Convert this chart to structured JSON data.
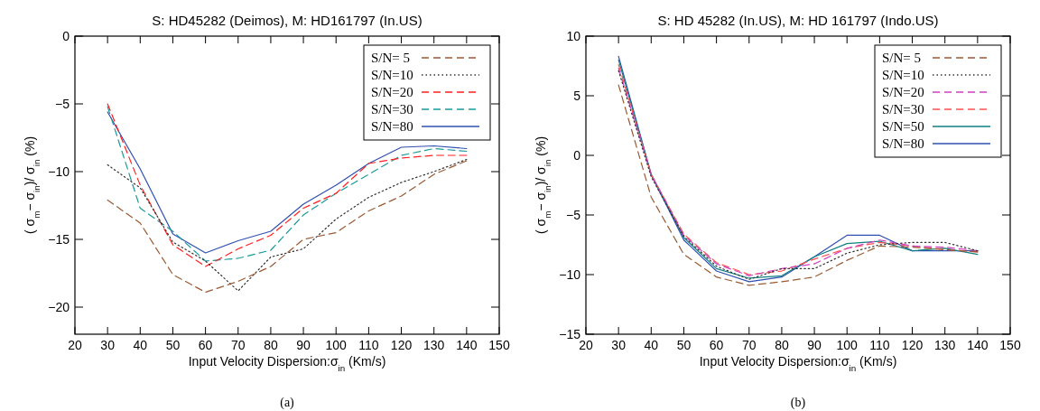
{
  "chart_data": [
    {
      "type": "line",
      "title": "S: HD45282 (Deimos), M: HD161797 (In.US)",
      "xlabel": "Input Velocity Dispersion:σ$_{in}$ (Km/s)",
      "ylabel": "( σ$_{m}$− σ$_{in}$)/ σ$_{in}$ (%)",
      "x": [
        30,
        40,
        50,
        60,
        70,
        80,
        90,
        100,
        110,
        120,
        130,
        140
      ],
      "xlim": [
        20,
        150
      ],
      "xticks": [
        20,
        30,
        40,
        50,
        60,
        70,
        80,
        90,
        100,
        110,
        120,
        130,
        140,
        150
      ],
      "ylim": [
        -22,
        0
      ],
      "yticks": [
        -20,
        -15,
        -10,
        -5,
        0
      ],
      "grid": false,
      "legend": "top right",
      "marker": "none",
      "annotations": [
        "(a)"
      ],
      "series": [
        {
          "name": "S/N= 5",
          "color": "#9a5a32",
          "line_style": "dashed",
          "values": [
            -12.1,
            -13.8,
            -17.6,
            -18.9,
            -18.1,
            -17.0,
            -15.0,
            -14.5,
            -12.9,
            -11.8,
            -10.2,
            -9.2
          ]
        },
        {
          "name": "S/N=10",
          "color": "#333333",
          "line_style": "dotted",
          "values": [
            -9.5,
            -11.2,
            -15.2,
            -16.6,
            -18.8,
            -16.3,
            -15.7,
            -13.5,
            -11.9,
            -10.8,
            -10.0,
            -9.1
          ]
        },
        {
          "name": "S/N=20",
          "color": "#ff2020",
          "line_style": "dashed",
          "values": [
            -5.0,
            -11.0,
            -15.4,
            -17.0,
            -15.7,
            -14.7,
            -12.7,
            -11.6,
            -9.4,
            -9.0,
            -8.8,
            -8.8
          ]
        },
        {
          "name": "S/N=30",
          "color": "#1a9a9a",
          "line_style": "dashed",
          "values": [
            -5.2,
            -12.7,
            -14.4,
            -16.6,
            -16.4,
            -15.8,
            -13.2,
            -11.6,
            -10.2,
            -8.8,
            -8.3,
            -8.5
          ]
        },
        {
          "name": "S/N=80",
          "color": "#3050b0",
          "line_style": "solid",
          "values": [
            -5.6,
            -9.8,
            -14.6,
            -16.0,
            -15.1,
            -14.4,
            -12.4,
            -11.0,
            -9.4,
            -8.2,
            -8.1,
            -8.3
          ]
        }
      ]
    },
    {
      "type": "line",
      "title": "S: HD 45282 (In.US), M: HD 161797 (Indo.US)",
      "xlabel": "Input Velocity Dispersion:σ$_{in}$ (Km/s)",
      "ylabel": "( σ$_{m}$− σ$_{in}$)/ σ$_{in}$ (%)",
      "x": [
        30,
        40,
        50,
        60,
        70,
        80,
        90,
        100,
        110,
        120,
        130,
        140
      ],
      "xlim": [
        20,
        150
      ],
      "xticks": [
        20,
        30,
        40,
        50,
        60,
        70,
        80,
        90,
        100,
        110,
        120,
        130,
        140,
        150
      ],
      "ylim": [
        -15,
        10
      ],
      "yticks": [
        -15,
        -10,
        -5,
        0,
        5,
        10
      ],
      "grid": false,
      "legend": "top right",
      "marker": "none",
      "annotations": [
        "(b)"
      ],
      "series": [
        {
          "name": "S/N= 5",
          "color": "#9a5a32",
          "line_style": "dashed",
          "values": [
            5.9,
            -3.5,
            -8.3,
            -10.2,
            -10.9,
            -10.6,
            -10.2,
            -8.8,
            -7.6,
            -7.7,
            -7.9,
            -8.1
          ]
        },
        {
          "name": "S/N=10",
          "color": "#333333",
          "line_style": "dotted",
          "values": [
            7.1,
            -1.8,
            -6.8,
            -9.3,
            -10.4,
            -9.5,
            -9.5,
            -8.2,
            -7.5,
            -7.3,
            -7.3,
            -8.0
          ]
        },
        {
          "name": "S/N=20",
          "color": "#d040c0",
          "line_style": "dashed",
          "values": [
            7.3,
            -1.6,
            -6.7,
            -9.1,
            -10.1,
            -9.5,
            -9.1,
            -7.8,
            -7.1,
            -7.6,
            -7.7,
            -8.0
          ]
        },
        {
          "name": "S/N=30",
          "color": "#ff5050",
          "line_style": "dashed",
          "values": [
            7.6,
            -1.6,
            -6.6,
            -9.0,
            -10.0,
            -9.7,
            -8.7,
            -7.8,
            -7.3,
            -7.6,
            -7.9,
            -8.1
          ]
        },
        {
          "name": "S/N=50",
          "color": "#108080",
          "line_style": "solid",
          "values": [
            8.0,
            -1.6,
            -6.9,
            -9.5,
            -10.3,
            -10.1,
            -8.5,
            -7.4,
            -7.2,
            -8.0,
            -7.8,
            -8.3
          ]
        },
        {
          "name": "S/N=80",
          "color": "#3050b0",
          "line_style": "solid",
          "values": [
            8.3,
            -1.6,
            -7.1,
            -9.7,
            -10.6,
            -10.2,
            -8.5,
            -6.7,
            -6.7,
            -8.0,
            -8.0,
            -8.0
          ]
        }
      ]
    }
  ]
}
